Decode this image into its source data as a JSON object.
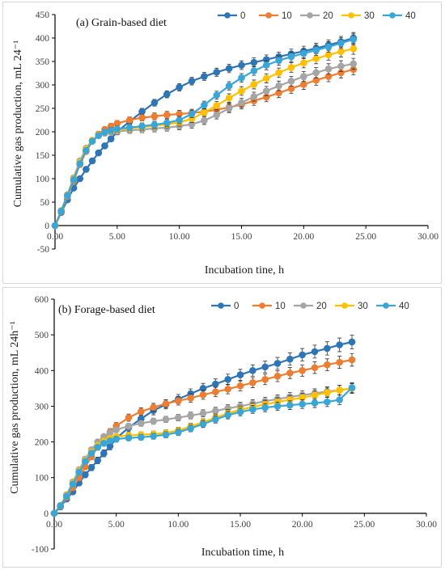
{
  "chart_data": [
    {
      "type": "line",
      "title": "(a) Grain-based diet",
      "xlabel": "Incubation tine, h",
      "ylabel": "Cumulative gas production, mL 24⁻¹",
      "xlim": [
        0,
        30
      ],
      "ylim": [
        -50,
        450
      ],
      "xticks": [
        "0.00",
        "5.00",
        "10.00",
        "15.00",
        "20.00",
        "25.00",
        "30.00"
      ],
      "yticks": [
        "-50",
        "0",
        "50",
        "100",
        "150",
        "200",
        "250",
        "300",
        "350",
        "400",
        "450"
      ],
      "grid": false,
      "legend_position": "top-right",
      "error_bars": true,
      "series": [
        {
          "name": "0",
          "color": "#2e75b6",
          "x": [
            0,
            0.5,
            1,
            1.5,
            2,
            2.5,
            3,
            3.5,
            4,
            4.5,
            5,
            6,
            7,
            8,
            9,
            10,
            11,
            12,
            13,
            14,
            15,
            16,
            17,
            18,
            19,
            20,
            21,
            22,
            23,
            24
          ],
          "y": [
            0,
            28,
            55,
            80,
            100,
            120,
            138,
            155,
            170,
            185,
            200,
            222,
            243,
            262,
            280,
            295,
            308,
            318,
            327,
            335,
            342,
            348,
            354,
            360,
            366,
            372,
            378,
            385,
            392,
            400
          ],
          "err": 12
        },
        {
          "name": "10",
          "color": "#ed7d31",
          "x": [
            0,
            0.5,
            1,
            1.5,
            2,
            2.5,
            3,
            3.5,
            4,
            4.5,
            5,
            6,
            7,
            8,
            9,
            10,
            11,
            12,
            13,
            14,
            15,
            16,
            17,
            18,
            19,
            20,
            21,
            22,
            23,
            24
          ],
          "y": [
            0,
            30,
            62,
            95,
            130,
            158,
            180,
            195,
            205,
            212,
            218,
            225,
            230,
            233,
            236,
            238,
            240,
            243,
            247,
            252,
            258,
            266,
            274,
            283,
            292,
            301,
            310,
            318,
            326,
            333
          ],
          "err": 12
        },
        {
          "name": "20",
          "color": "#a5a5a5",
          "x": [
            0,
            0.5,
            1,
            1.5,
            2,
            2.5,
            3,
            3.5,
            4,
            4.5,
            5,
            6,
            7,
            8,
            9,
            10,
            11,
            12,
            13,
            14,
            15,
            16,
            17,
            18,
            19,
            20,
            21,
            22,
            23,
            24
          ],
          "y": [
            0,
            32,
            66,
            102,
            138,
            165,
            182,
            192,
            197,
            200,
            201,
            203,
            205,
            207,
            209,
            212,
            216,
            224,
            236,
            250,
            262,
            275,
            287,
            298,
            308,
            318,
            326,
            334,
            340,
            345
          ],
          "err": 12
        },
        {
          "name": "30",
          "color": "#ffc000",
          "x": [
            0,
            0.5,
            1,
            1.5,
            2,
            2.5,
            3,
            3.5,
            4,
            4.5,
            5,
            6,
            7,
            8,
            9,
            10,
            11,
            12,
            13,
            14,
            15,
            16,
            17,
            18,
            19,
            20,
            21,
            22,
            23,
            24
          ],
          "y": [
            0,
            32,
            65,
            100,
            135,
            163,
            182,
            193,
            199,
            202,
            204,
            207,
            210,
            213,
            216,
            220,
            228,
            241,
            256,
            272,
            287,
            301,
            314,
            326,
            337,
            347,
            356,
            364,
            371,
            377
          ],
          "err": 12
        },
        {
          "name": "40",
          "color": "#3aa6d8",
          "x": [
            0,
            0.5,
            1,
            1.5,
            2,
            2.5,
            3,
            3.5,
            4,
            4.5,
            5,
            6,
            7,
            8,
            9,
            10,
            11,
            12,
            13,
            14,
            15,
            16,
            17,
            18,
            19,
            20,
            21,
            22,
            23,
            24
          ],
          "y": [
            0,
            31,
            64,
            98,
            132,
            160,
            180,
            192,
            199,
            203,
            206,
            209,
            212,
            215,
            219,
            225,
            238,
            257,
            278,
            298,
            315,
            330,
            342,
            352,
            360,
            367,
            374,
            381,
            389,
            397
          ],
          "err": 12
        }
      ]
    },
    {
      "type": "line",
      "title": "(b) Forage-based diet",
      "xlabel": "Incubation time, h",
      "ylabel": "Cumulative gas production, mL 24h⁻¹",
      "xlim": [
        0,
        30
      ],
      "ylim": [
        -100,
        600
      ],
      "xticks": [
        "0.00",
        "5.00",
        "10.00",
        "15.00",
        "20.00",
        "25.00",
        "30.00"
      ],
      "yticks": [
        "-100",
        "0",
        "100",
        "200",
        "300",
        "400",
        "500",
        "600"
      ],
      "grid": false,
      "legend_position": "top-right",
      "error_bars": true,
      "series": [
        {
          "name": "0",
          "color": "#2e75b6",
          "x": [
            0,
            0.5,
            1,
            1.5,
            2,
            2.5,
            3,
            3.5,
            4,
            4.5,
            5,
            6,
            7,
            8,
            9,
            10,
            11,
            12,
            13,
            14,
            15,
            16,
            17,
            18,
            19,
            20,
            21,
            22,
            23,
            24
          ],
          "y": [
            0,
            18,
            40,
            60,
            85,
            108,
            128,
            148,
            168,
            188,
            210,
            240,
            265,
            288,
            305,
            320,
            335,
            350,
            362,
            375,
            388,
            400,
            410,
            420,
            432,
            444,
            453,
            462,
            472,
            480
          ],
          "err": 20
        },
        {
          "name": "10",
          "color": "#ed7d31",
          "x": [
            0,
            0.5,
            1,
            1.5,
            2,
            2.5,
            3,
            3.5,
            4,
            4.5,
            5,
            6,
            7,
            8,
            9,
            10,
            11,
            12,
            13,
            14,
            15,
            16,
            17,
            18,
            19,
            20,
            21,
            22,
            23,
            24
          ],
          "y": [
            0,
            20,
            45,
            72,
            100,
            130,
            158,
            185,
            208,
            228,
            245,
            268,
            285,
            297,
            307,
            315,
            323,
            332,
            340,
            348,
            357,
            366,
            375,
            384,
            393,
            400,
            408,
            416,
            423,
            430
          ],
          "err": 18
        },
        {
          "name": "20",
          "color": "#a5a5a5",
          "x": [
            0,
            0.5,
            1,
            1.5,
            2,
            2.5,
            3,
            3.5,
            4,
            4.5,
            5,
            6,
            7,
            8,
            9,
            10,
            11,
            12,
            13,
            14,
            15,
            16,
            17,
            18,
            19,
            20,
            21,
            22,
            23,
            24
          ],
          "y": [
            0,
            22,
            52,
            88,
            122,
            152,
            178,
            200,
            215,
            226,
            234,
            244,
            252,
            258,
            263,
            268,
            274,
            280,
            287,
            294,
            300,
            307,
            314,
            320,
            326,
            331,
            336,
            341,
            345,
            350
          ],
          "err": 14
        },
        {
          "name": "30",
          "color": "#ffc000",
          "x": [
            0,
            0.5,
            1,
            1.5,
            2,
            2.5,
            3,
            3.5,
            4,
            4.5,
            5,
            6,
            7,
            8,
            9,
            10,
            11,
            12,
            13,
            14,
            15,
            16,
            17,
            18,
            19,
            20,
            21,
            22,
            23,
            24
          ],
          "y": [
            0,
            22,
            50,
            85,
            118,
            148,
            172,
            190,
            202,
            210,
            215,
            218,
            220,
            222,
            225,
            232,
            243,
            255,
            268,
            280,
            290,
            298,
            305,
            312,
            318,
            324,
            331,
            338,
            345,
            350
          ],
          "err": 14
        },
        {
          "name": "40",
          "color": "#3aa6d8",
          "x": [
            0,
            0.5,
            1,
            1.5,
            2,
            2.5,
            3,
            3.5,
            4,
            4.5,
            5,
            6,
            7,
            8,
            9,
            10,
            11,
            12,
            13,
            14,
            15,
            16,
            17,
            18,
            19,
            20,
            21,
            22,
            23,
            24
          ],
          "y": [
            0,
            21,
            48,
            82,
            115,
            145,
            168,
            185,
            196,
            203,
            208,
            211,
            213,
            216,
            220,
            227,
            238,
            250,
            263,
            275,
            284,
            291,
            296,
            300,
            303,
            306,
            309,
            312,
            318,
            352
          ],
          "err": 14
        }
      ]
    }
  ]
}
